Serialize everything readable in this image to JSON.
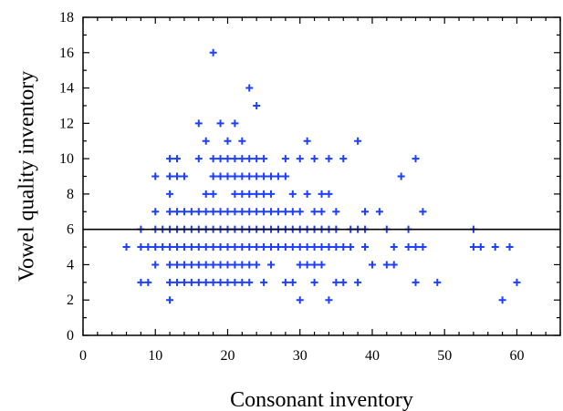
{
  "chart_data": {
    "type": "scatter",
    "title": "",
    "xlabel": "Consonant inventory",
    "ylabel": "Vowel quality inventory",
    "xlim": [
      0,
      66
    ],
    "ylim": [
      0,
      18
    ],
    "x_ticks": [
      0,
      10,
      20,
      30,
      40,
      50,
      60
    ],
    "x_tick_labels": [
      "0",
      "10",
      "20",
      "30",
      "40",
      "50",
      "60"
    ],
    "y_ticks": [
      0,
      2,
      4,
      6,
      8,
      10,
      12,
      14,
      16,
      18
    ],
    "y_tick_labels": [
      "0",
      "2",
      "4",
      "6",
      "8",
      "10",
      "12",
      "14",
      "16",
      "18"
    ],
    "x_minor_step": 2,
    "y_minor_step": 1,
    "grid": false,
    "marker": "plus",
    "point_color": "#1f3fff",
    "reference_line": {
      "orientation": "horizontal",
      "y": 6
    },
    "points": [
      [
        6,
        5
      ],
      [
        8,
        3
      ],
      [
        8,
        5
      ],
      [
        8,
        6
      ],
      [
        9,
        3
      ],
      [
        9,
        5
      ],
      [
        10,
        4
      ],
      [
        10,
        5
      ],
      [
        10,
        6
      ],
      [
        10,
        7
      ],
      [
        10,
        9
      ],
      [
        11,
        5
      ],
      [
        11,
        6
      ],
      [
        12,
        2
      ],
      [
        12,
        3
      ],
      [
        12,
        4
      ],
      [
        12,
        5
      ],
      [
        12,
        6
      ],
      [
        12,
        7
      ],
      [
        12,
        8
      ],
      [
        12,
        9
      ],
      [
        12,
        10
      ],
      [
        13,
        3
      ],
      [
        13,
        4
      ],
      [
        13,
        5
      ],
      [
        13,
        6
      ],
      [
        13,
        7
      ],
      [
        13,
        9
      ],
      [
        13,
        10
      ],
      [
        14,
        3
      ],
      [
        14,
        4
      ],
      [
        14,
        5
      ],
      [
        14,
        6
      ],
      [
        14,
        7
      ],
      [
        14,
        9
      ],
      [
        15,
        3
      ],
      [
        15,
        4
      ],
      [
        15,
        5
      ],
      [
        15,
        6
      ],
      [
        15,
        7
      ],
      [
        16,
        3
      ],
      [
        16,
        4
      ],
      [
        16,
        5
      ],
      [
        16,
        6
      ],
      [
        16,
        7
      ],
      [
        16,
        10
      ],
      [
        16,
        12
      ],
      [
        17,
        3
      ],
      [
        17,
        4
      ],
      [
        17,
        5
      ],
      [
        17,
        6
      ],
      [
        17,
        7
      ],
      [
        17,
        8
      ],
      [
        17,
        11
      ],
      [
        18,
        3
      ],
      [
        18,
        4
      ],
      [
        18,
        5
      ],
      [
        18,
        6
      ],
      [
        18,
        7
      ],
      [
        18,
        8
      ],
      [
        18,
        9
      ],
      [
        18,
        10
      ],
      [
        18,
        16
      ],
      [
        19,
        3
      ],
      [
        19,
        4
      ],
      [
        19,
        5
      ],
      [
        19,
        6
      ],
      [
        19,
        7
      ],
      [
        19,
        9
      ],
      [
        19,
        10
      ],
      [
        19,
        12
      ],
      [
        20,
        3
      ],
      [
        20,
        4
      ],
      [
        20,
        5
      ],
      [
        20,
        6
      ],
      [
        20,
        7
      ],
      [
        20,
        9
      ],
      [
        20,
        10
      ],
      [
        20,
        11
      ],
      [
        21,
        3
      ],
      [
        21,
        4
      ],
      [
        21,
        5
      ],
      [
        21,
        6
      ],
      [
        21,
        7
      ],
      [
        21,
        8
      ],
      [
        21,
        9
      ],
      [
        21,
        10
      ],
      [
        21,
        12
      ],
      [
        22,
        3
      ],
      [
        22,
        4
      ],
      [
        22,
        5
      ],
      [
        22,
        6
      ],
      [
        22,
        7
      ],
      [
        22,
        8
      ],
      [
        22,
        9
      ],
      [
        22,
        10
      ],
      [
        22,
        11
      ],
      [
        23,
        3
      ],
      [
        23,
        4
      ],
      [
        23,
        5
      ],
      [
        23,
        6
      ],
      [
        23,
        7
      ],
      [
        23,
        8
      ],
      [
        23,
        9
      ],
      [
        23,
        10
      ],
      [
        23,
        14
      ],
      [
        24,
        4
      ],
      [
        24,
        5
      ],
      [
        24,
        6
      ],
      [
        24,
        7
      ],
      [
        24,
        8
      ],
      [
        24,
        9
      ],
      [
        24,
        10
      ],
      [
        24,
        13
      ],
      [
        25,
        3
      ],
      [
        25,
        5
      ],
      [
        25,
        6
      ],
      [
        25,
        7
      ],
      [
        25,
        8
      ],
      [
        25,
        9
      ],
      [
        25,
        10
      ],
      [
        26,
        4
      ],
      [
        26,
        5
      ],
      [
        26,
        6
      ],
      [
        26,
        7
      ],
      [
        26,
        8
      ],
      [
        26,
        9
      ],
      [
        27,
        5
      ],
      [
        27,
        6
      ],
      [
        27,
        7
      ],
      [
        27,
        9
      ],
      [
        28,
        3
      ],
      [
        28,
        5
      ],
      [
        28,
        6
      ],
      [
        28,
        7
      ],
      [
        28,
        9
      ],
      [
        28,
        10
      ],
      [
        29,
        3
      ],
      [
        29,
        5
      ],
      [
        29,
        6
      ],
      [
        29,
        7
      ],
      [
        29,
        8
      ],
      [
        30,
        2
      ],
      [
        30,
        4
      ],
      [
        30,
        5
      ],
      [
        30,
        6
      ],
      [
        30,
        7
      ],
      [
        30,
        10
      ],
      [
        31,
        4
      ],
      [
        31,
        5
      ],
      [
        31,
        6
      ],
      [
        31,
        8
      ],
      [
        31,
        11
      ],
      [
        32,
        3
      ],
      [
        32,
        4
      ],
      [
        32,
        5
      ],
      [
        32,
        6
      ],
      [
        32,
        7
      ],
      [
        32,
        10
      ],
      [
        33,
        4
      ],
      [
        33,
        5
      ],
      [
        33,
        6
      ],
      [
        33,
        7
      ],
      [
        33,
        8
      ],
      [
        34,
        2
      ],
      [
        34,
        5
      ],
      [
        34,
        6
      ],
      [
        34,
        8
      ],
      [
        34,
        10
      ],
      [
        35,
        3
      ],
      [
        35,
        5
      ],
      [
        35,
        6
      ],
      [
        35,
        7
      ],
      [
        36,
        3
      ],
      [
        36,
        5
      ],
      [
        36,
        10
      ],
      [
        37,
        5
      ],
      [
        37,
        6
      ],
      [
        38,
        3
      ],
      [
        38,
        6
      ],
      [
        38,
        11
      ],
      [
        39,
        5
      ],
      [
        39,
        6
      ],
      [
        39,
        7
      ],
      [
        40,
        4
      ],
      [
        41,
        7
      ],
      [
        42,
        4
      ],
      [
        42,
        6
      ],
      [
        43,
        4
      ],
      [
        43,
        5
      ],
      [
        44,
        9
      ],
      [
        45,
        5
      ],
      [
        45,
        6
      ],
      [
        46,
        3
      ],
      [
        46,
        5
      ],
      [
        46,
        10
      ],
      [
        47,
        5
      ],
      [
        47,
        7
      ],
      [
        49,
        3
      ],
      [
        54,
        5
      ],
      [
        54,
        6
      ],
      [
        55,
        5
      ],
      [
        57,
        5
      ],
      [
        58,
        2
      ],
      [
        59,
        5
      ],
      [
        60,
        3
      ]
    ]
  }
}
